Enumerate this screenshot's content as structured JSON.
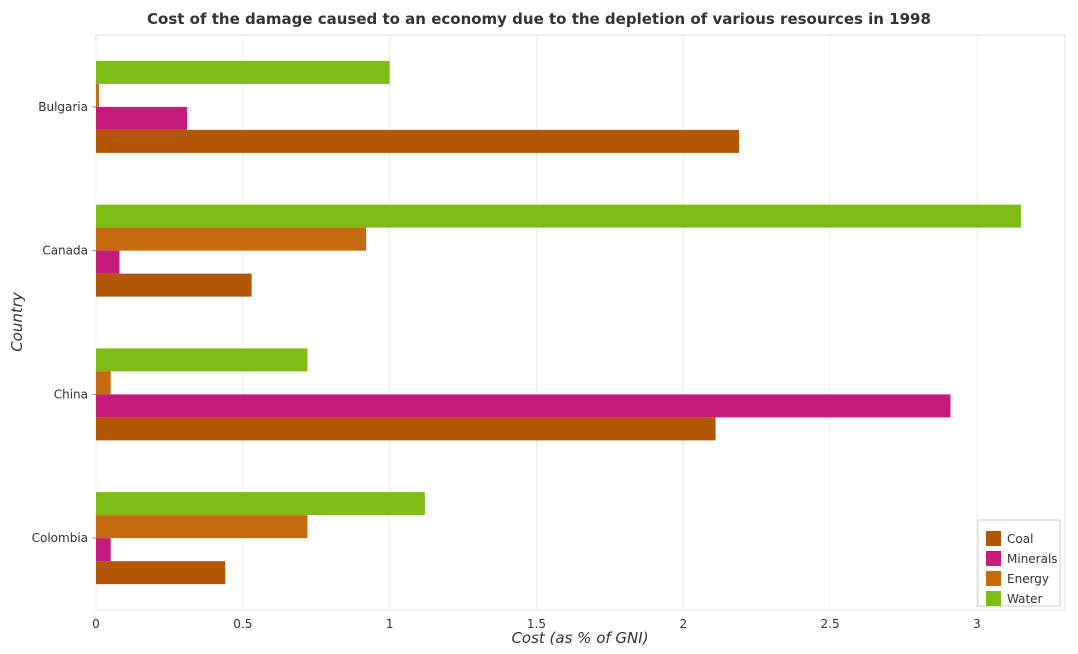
{
  "chart_data": {
    "type": "bar",
    "orientation": "horizontal",
    "title": "Cost of the damage caused to an economy due to the depletion of various resources in 1998",
    "xlabel": "Cost (as % of GNI)",
    "ylabel": "Country",
    "categories": [
      "Bulgaria",
      "Canada",
      "China",
      "Colombia"
    ],
    "xlim": [
      0,
      3.3
    ],
    "xticks": [
      "0",
      "0.5",
      "1",
      "1.5",
      "2",
      "2.5",
      "3"
    ],
    "xtick_values": [
      0,
      0.5,
      1,
      1.5,
      2,
      2.5,
      3
    ],
    "grid": true,
    "legend_position": "bottom-right",
    "series": [
      {
        "name": "Coal",
        "color": "#b35806",
        "values": [
          2.19,
          0.53,
          2.11,
          0.44
        ]
      },
      {
        "name": "Minerals",
        "color": "#c51b7d",
        "values": [
          0.31,
          0.08,
          2.91,
          0.05
        ]
      },
      {
        "name": "Energy",
        "color": "#c66a10",
        "values": [
          0.01,
          0.92,
          0.05,
          0.72
        ]
      },
      {
        "name": "Water",
        "color": "#7fbc16",
        "values": [
          1.0,
          3.15,
          0.72,
          1.12
        ]
      }
    ]
  }
}
